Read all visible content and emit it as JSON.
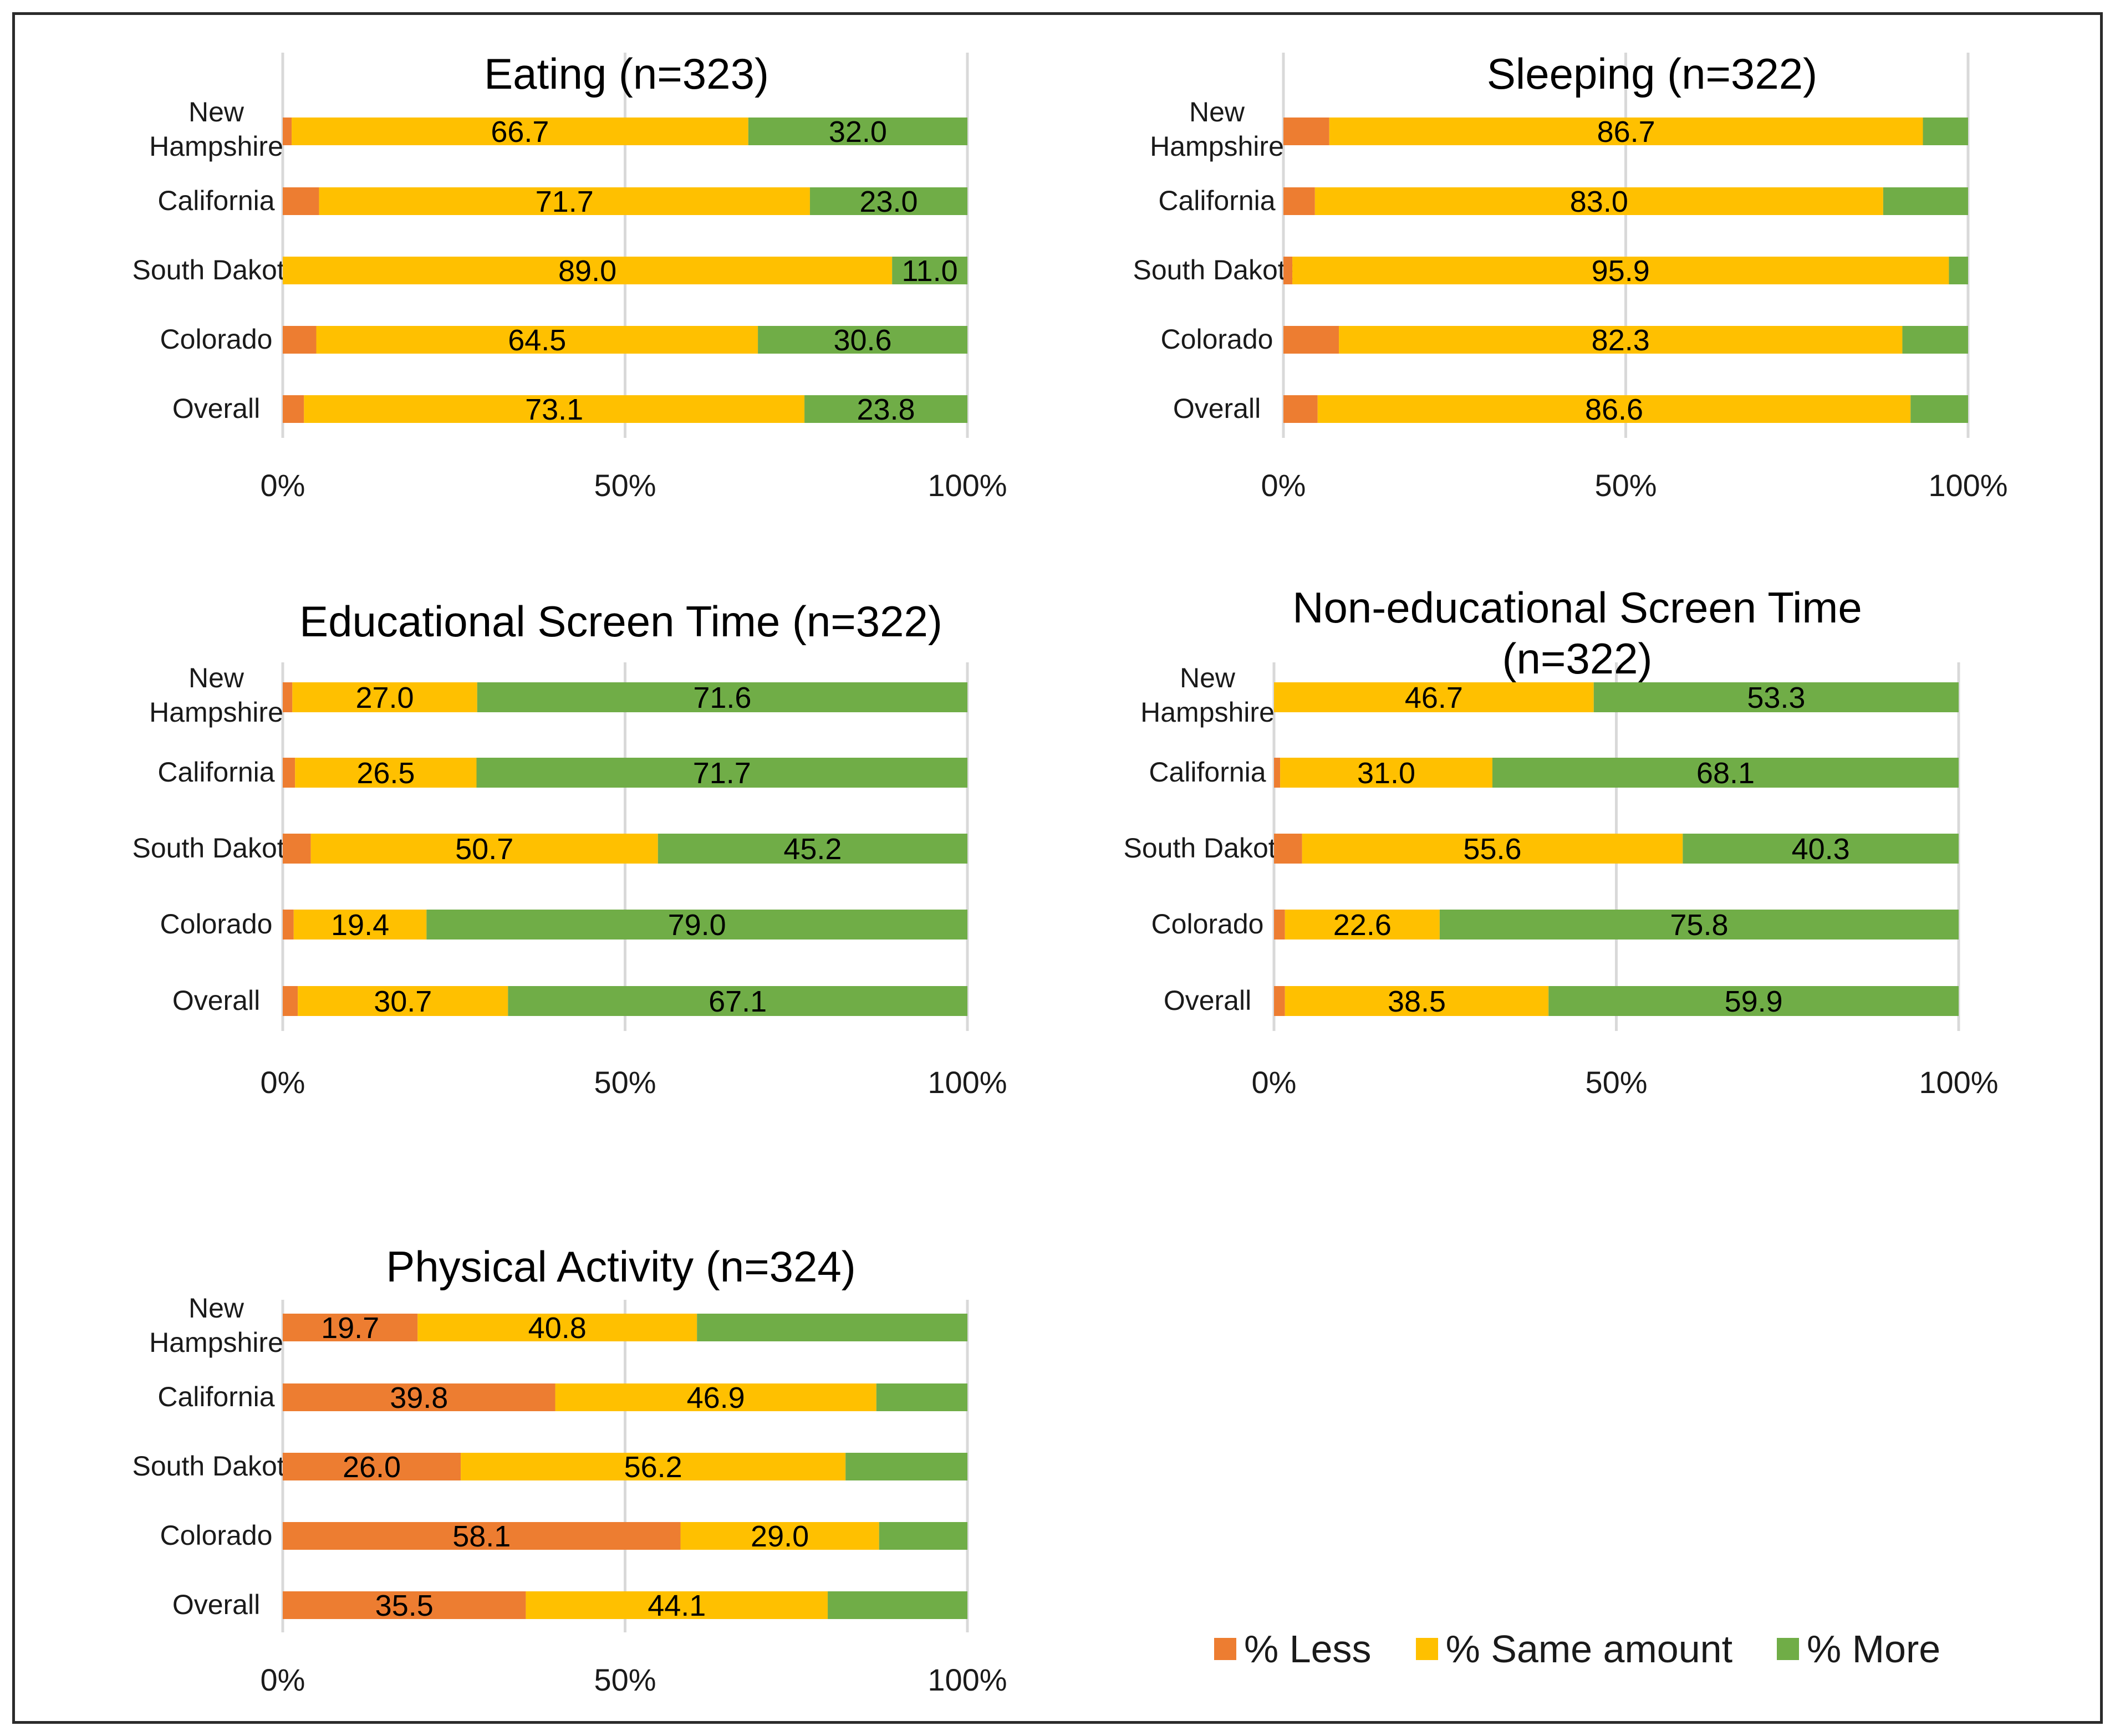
{
  "colors": {
    "less": "#ED7D31",
    "same": "#FFC000",
    "more": "#70AD47",
    "grid": "#D9D9D9"
  },
  "legend": {
    "less": "% Less",
    "same": "% Same amount",
    "more": "% More"
  },
  "axis_ticks": [
    "0%",
    "50%",
    "100%"
  ],
  "chart_data": [
    {
      "type": "bar",
      "stacked": true,
      "orientation": "horizontal",
      "title": "Eating (n=323)",
      "categories": [
        "New Hampshire",
        "California",
        "South Dakota",
        "Colorado",
        "Overall"
      ],
      "series": [
        {
          "name": "% Less",
          "values": [
            1.3,
            5.3,
            0.0,
            4.9,
            3.1
          ],
          "labels": [
            "",
            "",
            "",
            "",
            ""
          ]
        },
        {
          "name": "% Same amount",
          "values": [
            66.7,
            71.7,
            89.0,
            64.5,
            73.1
          ],
          "labels": [
            "66.7",
            "71.7",
            "89.0",
            "64.5",
            "73.1"
          ]
        },
        {
          "name": "% More",
          "values": [
            32.0,
            23.0,
            11.0,
            30.6,
            23.8
          ],
          "labels": [
            "32.0",
            "23.0",
            "11.0",
            "30.6",
            "23.8"
          ]
        }
      ],
      "xlim": [
        0,
        100
      ]
    },
    {
      "type": "bar",
      "stacked": true,
      "orientation": "horizontal",
      "title": "Sleeping (n=322)",
      "categories": [
        "New Hampshire",
        "California",
        "South Dakota",
        "Colorado",
        "Overall"
      ],
      "series": [
        {
          "name": "% Less",
          "values": [
            6.7,
            4.6,
            1.3,
            8.1,
            5.0
          ],
          "labels": [
            "",
            "",
            "",
            "",
            ""
          ]
        },
        {
          "name": "% Same amount",
          "values": [
            86.7,
            83.0,
            95.9,
            82.3,
            86.6
          ],
          "labels": [
            "86.7",
            "83.0",
            "95.9",
            "82.3",
            "86.6"
          ]
        },
        {
          "name": "% More",
          "values": [
            6.6,
            12.4,
            2.8,
            9.6,
            8.4
          ],
          "labels": [
            "",
            "",
            "",
            "",
            ""
          ]
        }
      ],
      "xlim": [
        0,
        100
      ]
    },
    {
      "type": "bar",
      "stacked": true,
      "orientation": "horizontal",
      "title": "Educational Screen Time (n=322)",
      "categories": [
        "New Hampshire",
        "California",
        "South Dakota",
        "Colorado",
        "Overall"
      ],
      "series": [
        {
          "name": "% Less",
          "values": [
            1.4,
            1.8,
            4.1,
            1.6,
            2.2
          ],
          "labels": [
            "",
            "",
            "",
            "",
            ""
          ]
        },
        {
          "name": "% Same amount",
          "values": [
            27.0,
            26.5,
            50.7,
            19.4,
            30.7
          ],
          "labels": [
            "27.0",
            "26.5",
            "50.7",
            "19.4",
            "30.7"
          ]
        },
        {
          "name": "% More",
          "values": [
            71.6,
            71.7,
            45.2,
            79.0,
            67.1
          ],
          "labels": [
            "71.6",
            "71.7",
            "45.2",
            "79.0",
            "67.1"
          ]
        }
      ],
      "xlim": [
        0,
        100
      ]
    },
    {
      "type": "bar",
      "stacked": true,
      "orientation": "horizontal",
      "title": "Non-educational Screen Time (n=322)",
      "categories": [
        "New Hampshire",
        "California",
        "South Dakota",
        "Colorado",
        "Overall"
      ],
      "series": [
        {
          "name": "% Less",
          "values": [
            0.0,
            0.9,
            4.1,
            1.6,
            1.6
          ],
          "labels": [
            "",
            "",
            "",
            "",
            ""
          ]
        },
        {
          "name": "% Same amount",
          "values": [
            46.7,
            31.0,
            55.6,
            22.6,
            38.5
          ],
          "labels": [
            "46.7",
            "31.0",
            "55.6",
            "22.6",
            "38.5"
          ]
        },
        {
          "name": "% More",
          "values": [
            53.3,
            68.1,
            40.3,
            75.8,
            59.9
          ],
          "labels": [
            "53.3",
            "68.1",
            "40.3",
            "75.8",
            "59.9"
          ]
        }
      ],
      "xlim": [
        0,
        100
      ]
    },
    {
      "type": "bar",
      "stacked": true,
      "orientation": "horizontal",
      "title": "Physical Activity (n=324)",
      "categories": [
        "New Hampshire",
        "California",
        "South Dakota",
        "Colorado",
        "Overall"
      ],
      "series": [
        {
          "name": "% Less",
          "values": [
            19.7,
            39.8,
            26.0,
            58.1,
            35.5
          ],
          "labels": [
            "19.7",
            "39.8",
            "26.0",
            "58.1",
            "35.5"
          ]
        },
        {
          "name": "% Same amount",
          "values": [
            40.8,
            46.9,
            56.2,
            29.0,
            44.1
          ],
          "labels": [
            "40.8",
            "46.9",
            "56.2",
            "29.0",
            "44.1"
          ]
        },
        {
          "name": "% More",
          "values": [
            39.5,
            13.3,
            17.8,
            12.9,
            20.4
          ],
          "labels": [
            "",
            "",
            "",
            "",
            ""
          ]
        }
      ],
      "xlim": [
        0,
        100
      ]
    }
  ]
}
